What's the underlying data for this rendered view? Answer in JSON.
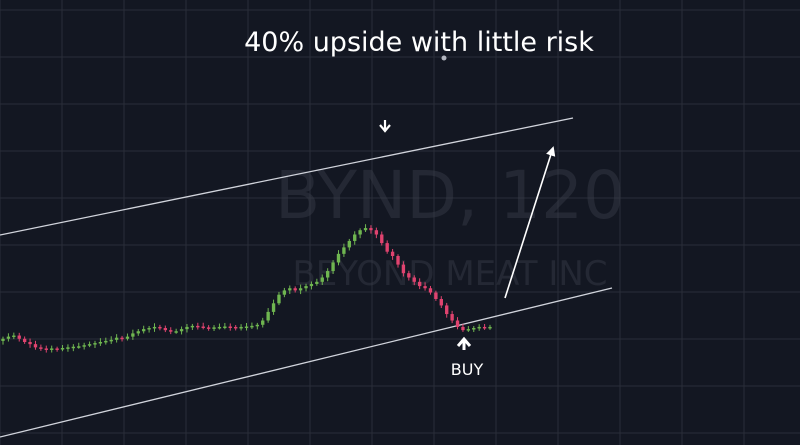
{
  "page": {
    "title": "40% upside with little risk",
    "watermark_ticker": "BYND, 120",
    "watermark_name": "BEYOND MEAT INC",
    "buy_label": "BUY"
  },
  "colors": {
    "background": "#131722",
    "grid": "#2a2e39",
    "up": "#6fb650",
    "down": "#e0436f",
    "lines": "#d1d4dc",
    "text": "#ffffff",
    "watermark": "#363a45"
  },
  "icons": {
    "peak_marker": "arrow-down-icon",
    "buy_marker": "arrow-up-icon",
    "projection": "projection-arrow-icon"
  },
  "chart_data": {
    "type": "candlestick",
    "title": "40% upside with little risk",
    "watermark": "BYND, 120",
    "grid": true,
    "axes_visible": false,
    "annotations": [
      "BUY"
    ],
    "closes": [
      0.215,
      0.225,
      0.23,
      0.215,
      0.2,
      0.19,
      0.175,
      0.17,
      0.165,
      0.17,
      0.168,
      0.172,
      0.175,
      0.178,
      0.18,
      0.185,
      0.19,
      0.195,
      0.2,
      0.205,
      0.21,
      0.22,
      0.215,
      0.225,
      0.24,
      0.25,
      0.26,
      0.265,
      0.27,
      0.265,
      0.255,
      0.25,
      0.25,
      0.26,
      0.27,
      0.275,
      0.272,
      0.268,
      0.265,
      0.268,
      0.27,
      0.272,
      0.27,
      0.268,
      0.27,
      0.272,
      0.275,
      0.28,
      0.3,
      0.34,
      0.38,
      0.42,
      0.44,
      0.45,
      0.44,
      0.45,
      0.46,
      0.47,
      0.48,
      0.5,
      0.53,
      0.57,
      0.61,
      0.64,
      0.67,
      0.7,
      0.72,
      0.73,
      0.72,
      0.7,
      0.66,
      0.62,
      0.6,
      0.56,
      0.52,
      0.5,
      0.48,
      0.46,
      0.45,
      0.43,
      0.4,
      0.37,
      0.33,
      0.3,
      0.27,
      0.255,
      0.26,
      0.265,
      0.27,
      0.268,
      0.27
    ]
  }
}
